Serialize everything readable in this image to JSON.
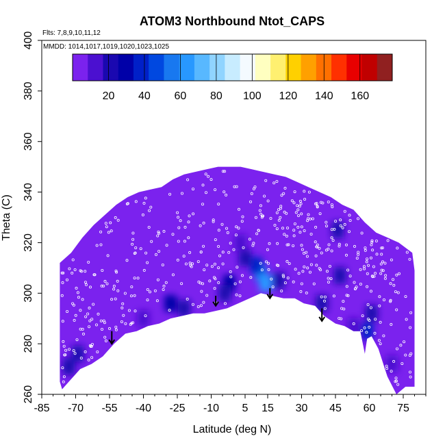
{
  "chart_data": {
    "type": "heatmap",
    "title": "ATOM3 Northbound Ntot_CAPS",
    "subtitle": "Flts: 7,8,9,10,11,12",
    "annotation": "MMDD: 1014,1017,1019,1020,1023,1025",
    "xlabel": "Latitude (deg N)",
    "ylabel": "Theta (C)",
    "xlim": [
      -85,
      85
    ],
    "ylim": [
      260,
      400
    ],
    "x_ticks": [
      "-85",
      "-70",
      "-55",
      "-40",
      "-25",
      "-10",
      "5",
      "15",
      "30",
      "45",
      "60",
      "75"
    ],
    "x_tick_values": [
      -85,
      -70,
      -55,
      -40,
      -25,
      -10,
      5,
      15,
      30,
      45,
      60,
      75
    ],
    "y_ticks": [
      "260",
      "280",
      "300",
      "320",
      "340",
      "360",
      "380",
      "400"
    ],
    "y_tick_values": [
      260,
      280,
      300,
      320,
      340,
      360,
      380,
      400
    ],
    "colorbar": {
      "range": [
        0,
        178
      ],
      "ticks": [
        "20",
        "40",
        "60",
        "80",
        "100",
        "120",
        "140",
        "160"
      ],
      "tick_values": [
        20,
        40,
        60,
        80,
        100,
        120,
        140,
        160
      ],
      "colors": [
        "#7b22ee",
        "#4b10d0",
        "#1a08b0",
        "#0000a8",
        "#0020c8",
        "#0048e0",
        "#1878f0",
        "#2898ff",
        "#58b8ff",
        "#90d4ff",
        "#c8ecff",
        "#f4faff",
        "#ffffc0",
        "#fff070",
        "#ffd000",
        "#ffa000",
        "#ff7000",
        "#ff3000",
        "#e80000",
        "#c00000",
        "#902020"
      ]
    },
    "background_value": 3,
    "upper_boundary": [
      [
        -77,
        312
      ],
      [
        -72,
        316
      ],
      [
        -67,
        322
      ],
      [
        -62,
        327
      ],
      [
        -57,
        331
      ],
      [
        -52,
        335
      ],
      [
        -47,
        338
      ],
      [
        -42,
        340
      ],
      [
        -37,
        341
      ],
      [
        -32,
        342
      ],
      [
        -27,
        345
      ],
      [
        -22,
        347
      ],
      [
        -17,
        348
      ],
      [
        -12,
        349
      ],
      [
        -7,
        350
      ],
      [
        -2,
        350
      ],
      [
        3,
        350
      ],
      [
        8,
        349
      ],
      [
        13,
        348
      ],
      [
        18,
        347
      ],
      [
        23,
        346
      ],
      [
        28,
        344
      ],
      [
        33,
        342
      ],
      [
        38,
        340
      ],
      [
        43,
        338
      ],
      [
        48,
        335
      ],
      [
        53,
        333
      ],
      [
        58,
        328
      ],
      [
        63,
        324
      ],
      [
        68,
        322
      ],
      [
        73,
        320
      ],
      [
        79,
        316
      ],
      [
        80,
        309
      ]
    ],
    "lower_boundary": [
      [
        80,
        263
      ],
      [
        76,
        263
      ],
      [
        72,
        260
      ],
      [
        68,
        267
      ],
      [
        64,
        278
      ],
      [
        61,
        283
      ],
      [
        59,
        282
      ],
      [
        58,
        276
      ],
      [
        56,
        285
      ],
      [
        53,
        285
      ],
      [
        49,
        287
      ],
      [
        45,
        288
      ],
      [
        40,
        291
      ],
      [
        36,
        295
      ],
      [
        31,
        296
      ],
      [
        27,
        298
      ],
      [
        22,
        298
      ],
      [
        17,
        299
      ],
      [
        12,
        300
      ],
      [
        7,
        298
      ],
      [
        2,
        296
      ],
      [
        -3,
        294
      ],
      [
        -8,
        293
      ],
      [
        -13,
        292
      ],
      [
        -18,
        292
      ],
      [
        -23,
        291
      ],
      [
        -28,
        290
      ],
      [
        -33,
        288
      ],
      [
        -38,
        287
      ],
      [
        -43,
        285
      ],
      [
        -48,
        284
      ],
      [
        -53,
        280
      ],
      [
        -58,
        275
      ],
      [
        -63,
        272
      ],
      [
        -68,
        270
      ],
      [
        -73,
        265
      ],
      [
        -76,
        262
      ],
      [
        -77,
        265
      ],
      [
        -77,
        312
      ]
    ],
    "hotspots": [
      {
        "lat": 12,
        "theta": 308,
        "value": 55
      },
      {
        "lat": 14,
        "theta": 304,
        "value": 62
      },
      {
        "lat": 10,
        "theta": 311,
        "value": 40
      },
      {
        "lat": 5,
        "theta": 314,
        "value": 25
      },
      {
        "lat": 3,
        "theta": 320,
        "value": 15
      },
      {
        "lat": -2,
        "theta": 304,
        "value": 30
      },
      {
        "lat": -4,
        "theta": 300,
        "value": 25
      },
      {
        "lat": 20,
        "theta": 305,
        "value": 20
      },
      {
        "lat": -28,
        "theta": 296,
        "value": 30
      },
      {
        "lat": -22,
        "theta": 294,
        "value": 18
      },
      {
        "lat": 39,
        "theta": 296,
        "value": 20
      },
      {
        "lat": 47,
        "theta": 307,
        "value": 22
      },
      {
        "lat": 46,
        "theta": 325,
        "value": 25
      },
      {
        "lat": 59,
        "theta": 285,
        "value": 40
      },
      {
        "lat": 61,
        "theta": 292,
        "value": 22
      },
      {
        "lat": 53,
        "theta": 287,
        "value": 15
      },
      {
        "lat": -73,
        "theta": 271,
        "value": 25
      },
      {
        "lat": -69,
        "theta": 276,
        "value": 18
      },
      {
        "lat": -40,
        "theta": 290,
        "value": 12
      },
      {
        "lat": 70,
        "theta": 272,
        "value": 15
      }
    ],
    "arrows": [
      {
        "lat": -54,
        "theta_top": 285,
        "theta_bottom": 280
      },
      {
        "lat": -8,
        "theta_top": 299,
        "theta_bottom": 295
      },
      {
        "lat": 16,
        "theta_top": 302,
        "theta_bottom": 298
      },
      {
        "lat": 39,
        "theta_top": 294,
        "theta_bottom": 289
      }
    ],
    "grid": false,
    "legend": "colorbar top"
  }
}
